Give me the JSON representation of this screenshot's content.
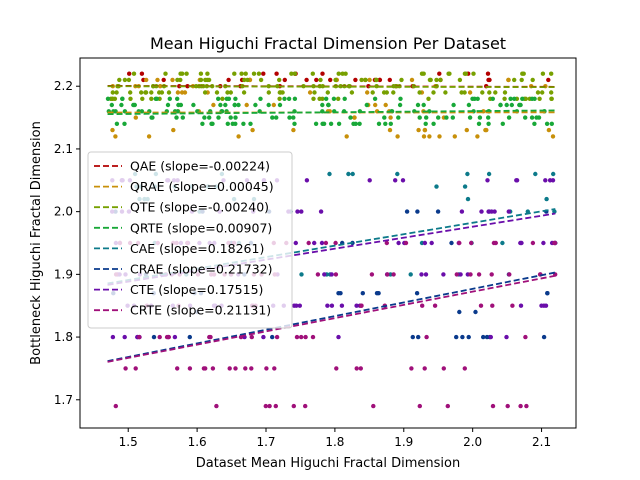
{
  "chart_data": {
    "type": "scatter",
    "title": "Mean Higuchi Fractal Dimension Per Dataset",
    "xlabel": "Dataset Mean Higuchi Fractal Dimension",
    "ylabel": "Bottleneck Higuchi Fractal Dimension",
    "xlim": [
      1.43,
      2.15
    ],
    "ylim": [
      1.655,
      2.245
    ],
    "xticks": [
      "1.5",
      "1.6",
      "1.7",
      "1.8",
      "1.9",
      "2.0",
      "2.1"
    ],
    "yticks": [
      "1.7",
      "1.8",
      "1.9",
      "2.0",
      "2.1",
      "2.2"
    ],
    "grid": false,
    "legend_position": "center-left",
    "series": [
      {
        "name": "QAE (slope=-0.00224)",
        "color": "#b30000",
        "fit": {
          "x": [
            1.47,
            2.12
          ],
          "y": [
            2.2005,
            2.199
          ]
        },
        "y_levels": [
          2.2,
          2.21,
          2.22
        ],
        "n_points": 40,
        "seed": 11
      },
      {
        "name": "QRAE (slope=0.00045)",
        "color": "#c8900a",
        "fit": {
          "x": [
            1.47,
            2.12
          ],
          "y": [
            2.158,
            2.1583
          ]
        },
        "y_levels": [
          2.12,
          2.13,
          2.15,
          2.16,
          2.17,
          2.19,
          2.2,
          2.21
        ],
        "n_points": 70,
        "seed": 23
      },
      {
        "name": "QTE (slope=-0.00240)",
        "color": "#77a000",
        "fit": {
          "x": [
            1.47,
            2.12
          ],
          "y": [
            2.2,
            2.1985
          ]
        },
        "y_levels": [
          2.18,
          2.19,
          2.2,
          2.21,
          2.22
        ],
        "n_points": 150,
        "seed": 37
      },
      {
        "name": "QRTE (slope=0.00907)",
        "color": "#18a838",
        "fit": {
          "x": [
            1.47,
            2.12
          ],
          "y": [
            2.1555,
            2.1614
          ]
        },
        "y_levels": [
          2.14,
          2.15,
          2.16,
          2.17,
          2.18
        ],
        "n_points": 150,
        "seed": 41
      },
      {
        "name": "CAE (slope=0.18261)",
        "color": "#0c7a8a",
        "fit": {
          "x": [
            1.47,
            2.12
          ],
          "y": [
            1.8855,
            2.0042
          ]
        },
        "y_levels": [
          1.9,
          1.95,
          2.0,
          2.02,
          2.04,
          2.06
        ],
        "n_points": 45,
        "seed": 53
      },
      {
        "name": "CRAE (slope=0.21732)",
        "color": "#0a3a8c",
        "fit": {
          "x": [
            1.47,
            2.12
          ],
          "y": [
            1.7617,
            1.903
          ]
        },
        "y_levels": [
          1.8,
          1.84,
          1.87,
          1.9,
          1.95,
          2.0
        ],
        "n_points": 45,
        "seed": 67
      },
      {
        "name": "CTE (slope=0.17515)",
        "color": "#6a0eaa",
        "fit": {
          "x": [
            1.47,
            2.12
          ],
          "y": [
            1.8832,
            1.997
          ]
        },
        "y_levels": [
          1.8,
          1.85,
          1.9,
          1.95,
          2.0,
          2.05
        ],
        "n_points": 110,
        "seed": 79
      },
      {
        "name": "CRTE (slope=0.21131)",
        "color": "#a0107a",
        "fit": {
          "x": [
            1.47,
            2.12
          ],
          "y": [
            1.7605,
            1.8978
          ]
        },
        "y_levels": [
          1.69,
          1.75,
          1.8,
          1.85,
          1.9,
          1.95
        ],
        "n_points": 110,
        "seed": 97
      }
    ]
  }
}
